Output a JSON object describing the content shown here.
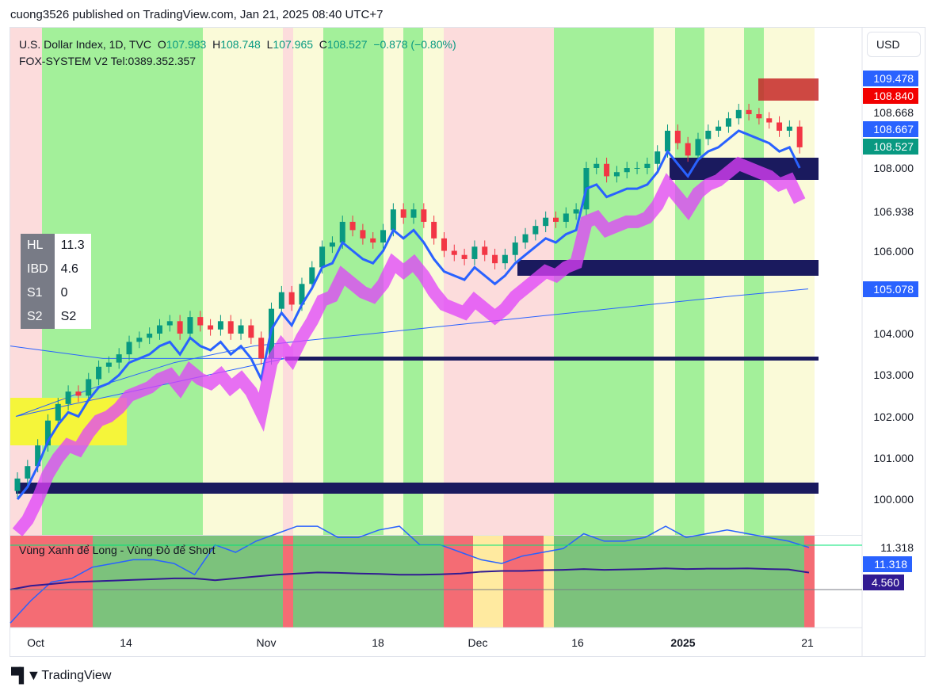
{
  "publisher": "cuong3526 published on TradingView.com, Jan 21, 2025 08:40 UTC+7",
  "legend": {
    "symbol": "U.S. Dollar Index, 1D, TVC",
    "o_label": "O",
    "o": "107.983",
    "h_label": "H",
    "h": "108.748",
    "l_label": "L",
    "l": "107.965",
    "c_label": "C",
    "c": "108.527",
    "change": "−0.878 (−0.80%)",
    "indicator": "FOX-SYSTEM V2 Tel:0389.352.357"
  },
  "currency": "USD",
  "price_axis": [
    "108.000",
    "106.938",
    "106.000",
    "104.000",
    "103.000",
    "102.000",
    "101.000",
    "100.000"
  ],
  "price_badges": [
    {
      "v": "109.478",
      "c": "#2962ff"
    },
    {
      "v": "108.840",
      "c": "#f20000"
    },
    {
      "v": "108.668",
      "c": ""
    },
    {
      "v": "108.667",
      "c": "#2962ff"
    },
    {
      "v": "108.527",
      "c": "#089981"
    },
    {
      "v": "105.078",
      "c": "#2962ff"
    }
  ],
  "table": [
    {
      "k": "HL",
      "v": "11.3"
    },
    {
      "k": "IBD",
      "v": "4.6"
    },
    {
      "k": "S1",
      "v": "0"
    },
    {
      "k": "S2",
      "v": "S2"
    }
  ],
  "sub": {
    "title": "Vùng Xanh để Long - Vùng Đỏ để Short",
    "labels": [
      {
        "v": "11.318",
        "c": ""
      },
      {
        "v": "11.318",
        "c": "#2962ff"
      },
      {
        "v": "4.560",
        "c": "#311b92"
      }
    ]
  },
  "time_axis": [
    "Oct",
    "14",
    "Nov",
    "18",
    "Dec",
    "16",
    "2025",
    "21"
  ],
  "brand": "TradingView",
  "chart_data": {
    "type": "candlestick",
    "ylim": [
      99.2,
      110.8
    ],
    "closes": [
      100.5,
      100.8,
      101.3,
      101.9,
      102.3,
      102.6,
      102.5,
      102.9,
      103.2,
      103.3,
      103.5,
      103.8,
      103.9,
      104.0,
      104.2,
      104.3,
      104.0,
      104.4,
      104.2,
      104.1,
      104.3,
      104.0,
      104.2,
      103.9,
      103.4,
      104.6,
      105.0,
      104.7,
      105.2,
      105.6,
      106.1,
      106.2,
      106.7,
      106.5,
      106.3,
      106.2,
      106.5,
      107.0,
      106.8,
      107.0,
      106.7,
      106.3,
      106.0,
      105.9,
      105.8,
      106.1,
      105.9,
      105.7,
      105.9,
      106.2,
      106.4,
      106.6,
      106.8,
      106.7,
      106.9,
      107.0,
      108.0,
      108.1,
      107.8,
      107.9,
      108.0,
      108.0,
      108.1,
      108.4,
      108.9,
      108.6,
      108.3,
      108.7,
      108.9,
      109.0,
      109.2,
      109.4,
      109.3,
      109.2,
      109.1,
      108.9,
      109.0,
      108.5
    ],
    "ma_long": [
      102.0,
      102.7,
      103.3,
      103.7,
      103.9,
      104.1,
      104.3,
      104.5,
      104.7,
      104.9,
      105.08
    ],
    "sub_series": {
      "hl": [
        -9,
        -3,
        2,
        3,
        6,
        7,
        8,
        8,
        7,
        4,
        12,
        10,
        13,
        15,
        17,
        17,
        14,
        14,
        16,
        17,
        12,
        12,
        10,
        8,
        7,
        9,
        10,
        11,
        15,
        13,
        13,
        14,
        17,
        14,
        15,
        16,
        15,
        14,
        13,
        11.3
      ],
      "ibd": [
        0,
        1,
        1.5,
        2,
        2.2,
        2.4,
        2.6,
        2.8,
        3,
        3,
        2.5,
        3,
        3.5,
        4,
        4.3,
        4.6,
        4.5,
        4.3,
        4.2,
        4,
        4,
        4.1,
        4.3,
        4.8,
        5,
        5,
        5.2,
        5.3,
        5.5,
        5.3,
        5.4,
        5.5,
        5.7,
        5.5,
        5.6,
        5.6,
        5.7,
        5.5,
        5.4,
        4.56
      ]
    }
  }
}
